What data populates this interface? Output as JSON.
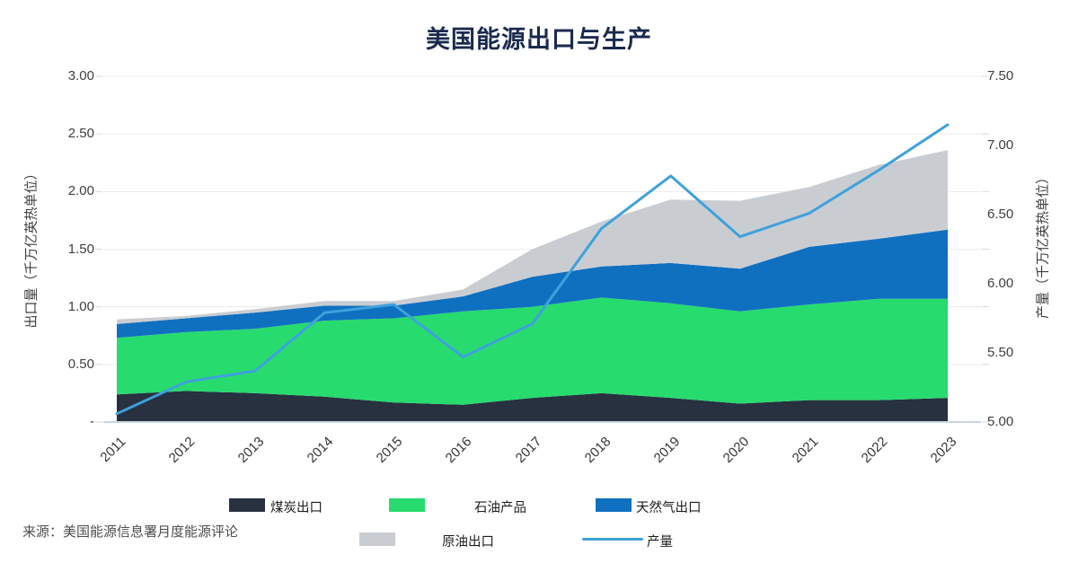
{
  "title": "美国能源出口与生产",
  "source": "来源：美国能源信息署月度能源评论",
  "left_axis": {
    "label": "出口量（千万亿英热单位）",
    "min": 0,
    "max": 3.0,
    "ticks": [
      "3.00",
      "2.50",
      "2.00",
      "1.50",
      "1.00",
      "0.50",
      "-"
    ]
  },
  "right_axis": {
    "label": "产量（千万亿英热单位）",
    "min": 5.0,
    "max": 7.5,
    "ticks": [
      "7.50",
      "7.00",
      "6.50",
      "6.00",
      "5.50",
      "5.00"
    ]
  },
  "chart_data": {
    "type": "area",
    "title": "美国能源出口与生产",
    "x": [
      2011,
      2012,
      2013,
      2014,
      2015,
      2016,
      2017,
      2018,
      2019,
      2020,
      2021,
      2022,
      2023
    ],
    "grid": "horizontal",
    "legend_position": "bottom",
    "series": [
      {
        "id": "coal",
        "name": "煤炭出口",
        "type": "area-stacked",
        "axis": "left",
        "color": "#273140",
        "values": [
          0.24,
          0.27,
          0.25,
          0.22,
          0.17,
          0.15,
          0.21,
          0.25,
          0.21,
          0.16,
          0.19,
          0.19,
          0.21
        ]
      },
      {
        "id": "petroleum_products",
        "name": "石油产品",
        "type": "area-stacked",
        "axis": "left",
        "color": "#27db6e",
        "values": [
          0.49,
          0.51,
          0.56,
          0.66,
          0.73,
          0.81,
          0.79,
          0.83,
          0.82,
          0.8,
          0.83,
          0.88,
          0.86
        ]
      },
      {
        "id": "natural_gas",
        "name": "天然气出口",
        "type": "area-stacked",
        "axis": "left",
        "color": "#1070c0",
        "values": [
          0.12,
          0.12,
          0.14,
          0.13,
          0.11,
          0.13,
          0.26,
          0.27,
          0.35,
          0.37,
          0.5,
          0.52,
          0.6
        ]
      },
      {
        "id": "crude_oil",
        "name": "原油出口",
        "type": "area-stacked",
        "axis": "left",
        "color": "#c9cdd2",
        "values": [
          0.04,
          0.02,
          0.03,
          0.04,
          0.04,
          0.06,
          0.24,
          0.39,
          0.55,
          0.59,
          0.52,
          0.64,
          0.69
        ]
      },
      {
        "id": "production",
        "name": "产量",
        "type": "line",
        "axis": "right",
        "color": "#3ea1dc",
        "values": [
          5.06,
          5.29,
          5.37,
          5.79,
          5.85,
          5.47,
          5.71,
          6.4,
          6.78,
          6.34,
          6.51,
          6.82,
          7.15
        ]
      }
    ]
  },
  "colors": {
    "title": "#1a2a4e",
    "gridline": "#ececec",
    "axis_line": "#c7d7e6",
    "tick_mark": "#d9d9d9",
    "tick_text": "#3f3f3f"
  }
}
